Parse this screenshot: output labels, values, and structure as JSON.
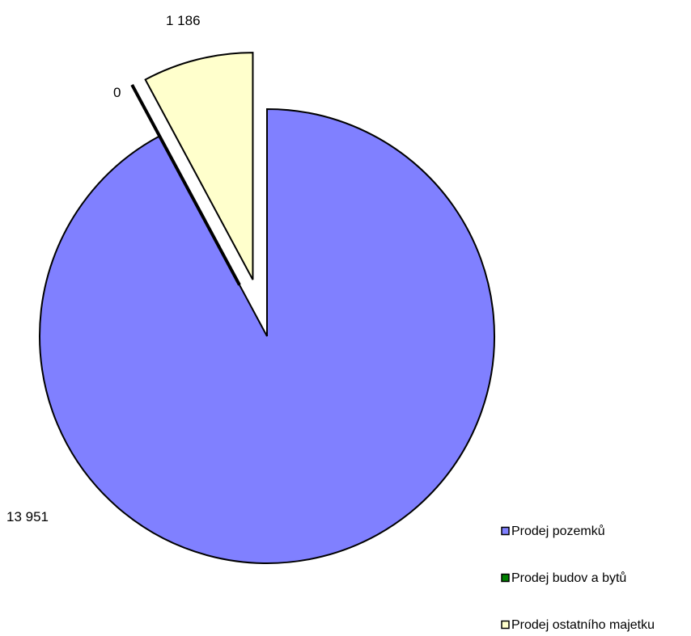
{
  "chart_data": {
    "type": "pie",
    "slices": [
      {
        "label": "Prodej pozemků",
        "value": 13951,
        "value_label": "13 951",
        "color": "#8080ff",
        "exploded": false
      },
      {
        "label": "Prodej budov a bytů",
        "value": 0,
        "value_label": "0",
        "color": "#008000",
        "exploded": true
      },
      {
        "label": "Prodej ostatního majetku",
        "value": 1186,
        "value_label": "1 186",
        "color": "#ffffcc",
        "exploded": true
      }
    ],
    "legend": {
      "placement": "bottom-right",
      "items": [
        "Prodej pozemků",
        "Prodej budov a bytů",
        "Prodej ostatního majetku"
      ]
    },
    "start_angle_deg": 0,
    "direction": "clockwise"
  }
}
